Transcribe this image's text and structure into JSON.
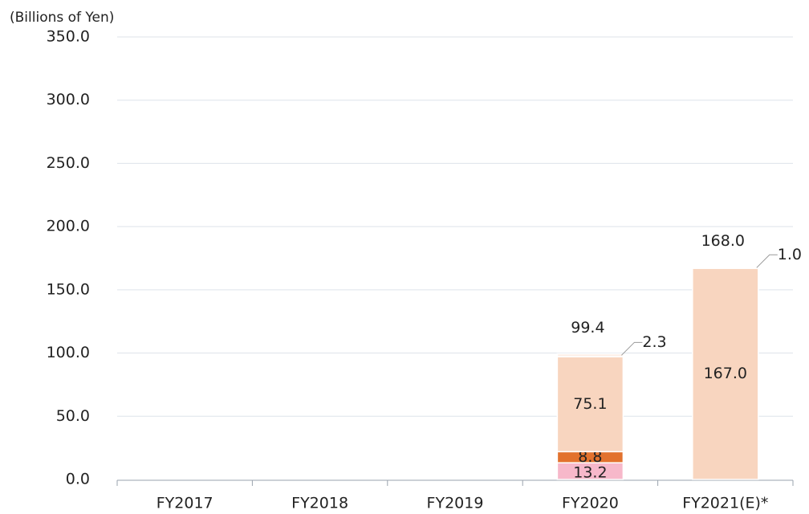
{
  "chart_data": {
    "type": "stacked_bar",
    "y_label": "(Billions of Yen)",
    "categories": [
      "FY2017",
      "FY2018",
      "FY2019",
      "FY2020",
      "FY2021(E)*"
    ],
    "series": [
      {
        "color": "#f7b8ca",
        "values": [
          null,
          null,
          null,
          13.2,
          null
        ],
        "value_labels": [
          null,
          null,
          null,
          "13.2",
          null
        ]
      },
      {
        "color": "#e2722e",
        "values": [
          null,
          null,
          null,
          8.8,
          null
        ],
        "value_labels": [
          null,
          null,
          null,
          "8.8",
          null
        ]
      },
      {
        "color": "#f8d5bf",
        "values": [
          null,
          null,
          null,
          75.1,
          167.0
        ],
        "value_labels": [
          null,
          null,
          null,
          "75.1",
          "167.0"
        ]
      },
      {
        "color": "#fdf0e8",
        "values": [
          null,
          null,
          null,
          2.3,
          1.0
        ],
        "value_labels": [
          null,
          null,
          null,
          "2.3",
          "1.0"
        ]
      }
    ],
    "totals": [
      null,
      null,
      null,
      99.4,
      168.0
    ],
    "total_labels": [
      null,
      null,
      null,
      "99.4",
      "168.0"
    ],
    "ylim": [
      0,
      350
    ],
    "yticks": [
      {
        "value": 0,
        "label": "0.0"
      },
      {
        "value": 50,
        "label": "50.0"
      },
      {
        "value": 100,
        "label": "100.0"
      },
      {
        "value": 150,
        "label": "150.0"
      },
      {
        "value": 200,
        "label": "200.0"
      },
      {
        "value": 250,
        "label": "250.0"
      },
      {
        "value": 300,
        "label": "300.0"
      },
      {
        "value": 350,
        "label": "350.0"
      }
    ],
    "grid": true
  }
}
